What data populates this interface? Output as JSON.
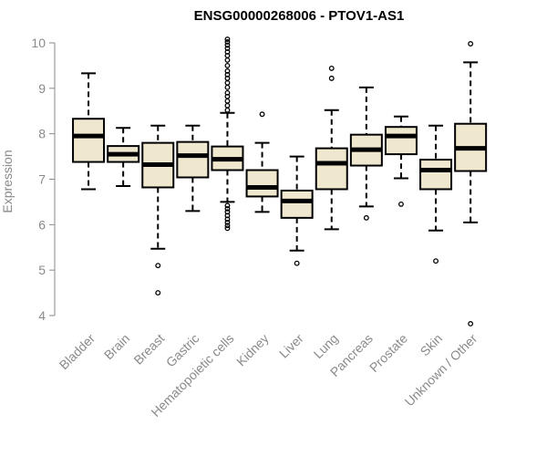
{
  "chart_data": {
    "type": "boxplot",
    "title": "ENSG00000268006 - PTOV1-AS1",
    "xlabel": "",
    "ylabel": "Expression",
    "ylim": [
      3.8,
      10.1
    ],
    "yticks": [
      4,
      5,
      6,
      7,
      8,
      9,
      10
    ],
    "box_color": "#efe8cf",
    "categories": [
      "Bladder",
      "Brain",
      "Breast",
      "Gastric",
      "Hematopoietic cells",
      "Kidney",
      "Liver",
      "Lung",
      "Pancreas",
      "Prostate",
      "Skin",
      "Unknown / Other"
    ],
    "series": [
      {
        "name": "Bladder",
        "min": 6.78,
        "q1": 7.38,
        "median": 7.95,
        "q3": 8.33,
        "max": 9.33,
        "outliers": []
      },
      {
        "name": "Brain",
        "min": 6.85,
        "q1": 7.38,
        "median": 7.55,
        "q3": 7.73,
        "max": 8.13,
        "outliers": []
      },
      {
        "name": "Breast",
        "min": 5.47,
        "q1": 6.82,
        "median": 7.32,
        "q3": 7.8,
        "max": 8.18,
        "outliers": [
          5.1,
          4.5
        ]
      },
      {
        "name": "Gastric",
        "min": 6.3,
        "q1": 7.04,
        "median": 7.52,
        "q3": 7.82,
        "max": 8.18,
        "outliers": []
      },
      {
        "name": "Hematopoietic cells",
        "min": 6.5,
        "q1": 7.2,
        "median": 7.44,
        "q3": 7.72,
        "max": 8.46,
        "outliers": [
          10.08,
          10.02,
          9.95,
          9.88,
          9.8,
          9.72,
          9.62,
          9.5,
          9.38,
          9.3,
          9.22,
          9.12,
          9.02,
          8.9,
          8.82,
          8.72,
          8.62,
          8.52,
          6.42,
          6.35,
          6.28,
          6.2,
          6.12,
          6.05,
          5.98,
          5.92
        ]
      },
      {
        "name": "Kidney",
        "min": 6.28,
        "q1": 6.62,
        "median": 6.82,
        "q3": 7.2,
        "max": 7.8,
        "outliers": [
          8.43
        ]
      },
      {
        "name": "Liver",
        "min": 5.43,
        "q1": 6.15,
        "median": 6.52,
        "q3": 6.75,
        "max": 7.5,
        "outliers": [
          5.15
        ]
      },
      {
        "name": "Lung",
        "min": 5.9,
        "q1": 6.78,
        "median": 7.35,
        "q3": 7.68,
        "max": 8.52,
        "outliers": [
          9.44,
          9.22
        ]
      },
      {
        "name": "Pancreas",
        "min": 6.4,
        "q1": 7.3,
        "median": 7.65,
        "q3": 7.98,
        "max": 9.02,
        "outliers": [
          6.15
        ]
      },
      {
        "name": "Prostate",
        "min": 7.02,
        "q1": 7.55,
        "median": 7.95,
        "q3": 8.15,
        "max": 8.38,
        "outliers": [
          6.45
        ]
      },
      {
        "name": "Skin",
        "min": 5.87,
        "q1": 6.78,
        "median": 7.2,
        "q3": 7.43,
        "max": 8.18,
        "outliers": [
          5.2
        ]
      },
      {
        "name": "Unknown / Other",
        "min": 6.05,
        "q1": 7.18,
        "median": 7.68,
        "q3": 8.22,
        "max": 9.57,
        "outliers": [
          9.98,
          3.82
        ]
      }
    ]
  }
}
